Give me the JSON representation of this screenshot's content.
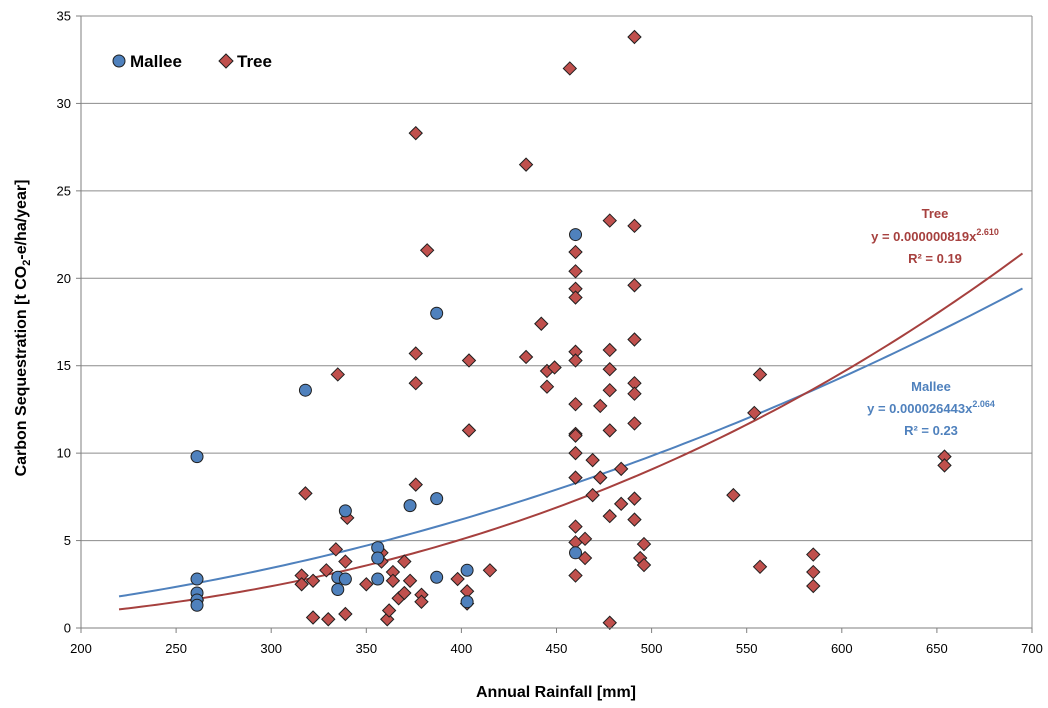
{
  "chart_data": {
    "type": "scatter",
    "xlabel": "Annual Rainfall [mm]",
    "ylabel": {
      "prefix": "Carbon Sequestration [t CO",
      "subscript": "2",
      "suffix": "-e/ha/year]"
    },
    "xlim": [
      200,
      700
    ],
    "ylim": [
      0,
      35
    ],
    "xticks": [
      200,
      250,
      300,
      350,
      400,
      450,
      500,
      550,
      600,
      650,
      700
    ],
    "yticks": [
      0,
      5,
      10,
      15,
      20,
      25,
      30,
      35
    ],
    "grid": "horizontal",
    "legend_position": "top-left",
    "series": [
      {
        "name": "Mallee",
        "marker": "circle",
        "color": "#4f81bd",
        "points": [
          [
            261,
            9.8
          ],
          [
            261,
            2.8
          ],
          [
            261,
            2.0
          ],
          [
            261,
            1.6
          ],
          [
            261,
            1.3
          ],
          [
            318,
            13.6
          ],
          [
            335,
            2.9
          ],
          [
            335,
            2.2
          ],
          [
            339,
            6.7
          ],
          [
            339,
            2.8
          ],
          [
            356,
            4.6
          ],
          [
            356,
            4.0
          ],
          [
            356,
            2.8
          ],
          [
            373,
            7.0
          ],
          [
            387,
            18.0
          ],
          [
            387,
            7.4
          ],
          [
            387,
            2.9
          ],
          [
            403,
            3.3
          ],
          [
            403,
            1.5
          ],
          [
            460,
            22.5
          ],
          [
            460,
            4.3
          ]
        ],
        "fit": {
          "a": 2.6443e-05,
          "b": 2.064,
          "x_range": [
            220,
            695
          ],
          "label": "Mallee",
          "equation_prefix": "y = 0.000026443x",
          "equation_exp": "2.064",
          "r2": "R² = 0.23",
          "color": "#4f81bd"
        }
      },
      {
        "name": "Tree",
        "marker": "diamond",
        "color": "#c0504d",
        "points": [
          [
            261,
            1.6
          ],
          [
            316,
            3.0
          ],
          [
            316,
            2.5
          ],
          [
            318,
            7.7
          ],
          [
            322,
            2.7
          ],
          [
            322,
            0.6
          ],
          [
            329,
            3.3
          ],
          [
            330,
            0.5
          ],
          [
            334,
            4.5
          ],
          [
            335,
            14.5
          ],
          [
            339,
            3.8
          ],
          [
            339,
            0.8
          ],
          [
            340,
            6.3
          ],
          [
            350,
            2.5
          ],
          [
            358,
            4.3
          ],
          [
            358,
            3.8
          ],
          [
            361,
            0.5
          ],
          [
            362,
            1.0
          ],
          [
            364,
            3.2
          ],
          [
            364,
            2.7
          ],
          [
            367,
            1.7
          ],
          [
            370,
            3.8
          ],
          [
            370,
            2.0
          ],
          [
            373,
            2.7
          ],
          [
            376,
            28.3
          ],
          [
            376,
            15.7
          ],
          [
            376,
            14.0
          ],
          [
            376,
            8.2
          ],
          [
            379,
            1.9
          ],
          [
            379,
            1.5
          ],
          [
            382,
            21.6
          ],
          [
            398,
            2.8
          ],
          [
            403,
            2.1
          ],
          [
            403,
            1.4
          ],
          [
            404,
            15.3
          ],
          [
            404,
            11.3
          ],
          [
            415,
            3.3
          ],
          [
            434,
            26.5
          ],
          [
            434,
            15.5
          ],
          [
            442,
            17.4
          ],
          [
            445,
            14.7
          ],
          [
            445,
            13.8
          ],
          [
            449,
            14.9
          ],
          [
            457,
            32.0
          ],
          [
            460,
            21.5
          ],
          [
            460,
            20.4
          ],
          [
            460,
            19.4
          ],
          [
            460,
            18.9
          ],
          [
            460,
            15.8
          ],
          [
            460,
            15.3
          ],
          [
            460,
            12.8
          ],
          [
            460,
            11.1
          ],
          [
            460,
            11.0
          ],
          [
            460,
            10.0
          ],
          [
            460,
            8.6
          ],
          [
            460,
            5.8
          ],
          [
            460,
            4.9
          ],
          [
            460,
            3.0
          ],
          [
            465,
            5.1
          ],
          [
            465,
            4.0
          ],
          [
            469,
            9.6
          ],
          [
            469,
            7.6
          ],
          [
            473,
            12.7
          ],
          [
            473,
            8.6
          ],
          [
            478,
            23.3
          ],
          [
            478,
            15.9
          ],
          [
            478,
            14.8
          ],
          [
            478,
            13.6
          ],
          [
            478,
            11.3
          ],
          [
            478,
            6.4
          ],
          [
            478,
            0.3
          ],
          [
            484,
            9.1
          ],
          [
            484,
            7.1
          ],
          [
            491,
            33.8
          ],
          [
            491,
            23.0
          ],
          [
            491,
            19.6
          ],
          [
            491,
            16.5
          ],
          [
            491,
            14.0
          ],
          [
            491,
            13.4
          ],
          [
            491,
            11.7
          ],
          [
            491,
            7.4
          ],
          [
            491,
            6.2
          ],
          [
            494,
            4.0
          ],
          [
            496,
            4.8
          ],
          [
            496,
            3.6
          ],
          [
            543,
            7.6
          ],
          [
            554,
            12.3
          ],
          [
            557,
            14.5
          ],
          [
            557,
            3.5
          ],
          [
            585,
            4.2
          ],
          [
            585,
            3.2
          ],
          [
            585,
            2.4
          ],
          [
            654,
            9.8
          ],
          [
            654,
            9.3
          ]
        ],
        "fit": {
          "a": 8.19e-07,
          "b": 2.61,
          "x_range": [
            220,
            695
          ],
          "label": "Tree",
          "equation_prefix": "y = 0.000000819x",
          "equation_exp": "2.610",
          "r2": "R² = 0.19",
          "color": "#a6403e"
        }
      }
    ]
  }
}
